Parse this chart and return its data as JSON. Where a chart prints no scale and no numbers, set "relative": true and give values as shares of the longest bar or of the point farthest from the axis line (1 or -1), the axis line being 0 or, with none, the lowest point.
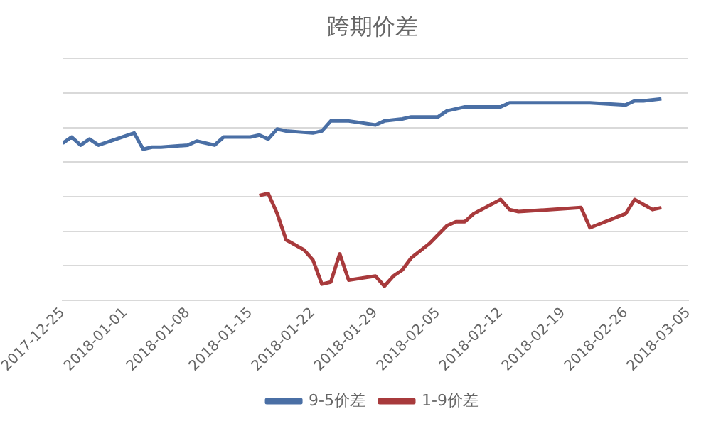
{
  "chart_data": {
    "type": "line",
    "title": "跨期价差",
    "relative": true,
    "grid": "y",
    "legend": "bottom",
    "marker": "none",
    "xlim": [
      "2017-12-25",
      "2018-03-05"
    ],
    "xticks": [
      "2017-12-25",
      "2018-01-01",
      "2018-01-08",
      "2018-01-15",
      "2018-01-22",
      "2018-01-29",
      "2018-02-05",
      "2018-02-12",
      "2018-02-19",
      "2018-02-26",
      "2018-03-05"
    ],
    "series": [
      {
        "name": "9-5价差",
        "color": "#4a6fa5",
        "x": [
          "2017-12-25",
          "2017-12-26",
          "2017-12-27",
          "2017-12-28",
          "2017-12-29",
          "2018-01-02",
          "2018-01-03",
          "2018-01-04",
          "2018-01-05",
          "2018-01-08",
          "2018-01-09",
          "2018-01-11",
          "2018-01-12",
          "2018-01-15",
          "2018-01-16",
          "2018-01-17",
          "2018-01-18",
          "2018-01-19",
          "2018-01-22",
          "2018-01-23",
          "2018-01-24",
          "2018-01-26",
          "2018-01-29",
          "2018-01-30",
          "2018-02-01",
          "2018-02-02",
          "2018-02-05",
          "2018-02-06",
          "2018-02-08",
          "2018-02-12",
          "2018-02-13",
          "2018-02-22",
          "2018-02-26",
          "2018-02-27",
          "2018-02-28",
          "2018-03-02"
        ],
        "values": [
          0.78,
          0.81,
          0.77,
          0.8,
          0.77,
          0.83,
          0.75,
          0.76,
          0.76,
          0.77,
          0.79,
          0.77,
          0.81,
          0.81,
          0.82,
          0.8,
          0.85,
          0.84,
          0.83,
          0.84,
          0.89,
          0.89,
          0.87,
          0.89,
          0.9,
          0.91,
          0.91,
          0.94,
          0.96,
          0.96,
          0.98,
          0.98,
          0.97,
          0.99,
          0.99,
          1
        ]
      },
      {
        "name": "1-9价差",
        "color": "#a83a3c",
        "x": [
          "2018-01-16",
          "2018-01-17",
          "2018-01-18",
          "2018-01-19",
          "2018-01-21",
          "2018-01-22",
          "2018-01-23",
          "2018-01-24",
          "2018-01-25",
          "2018-01-26",
          "2018-01-29",
          "2018-01-30",
          "2018-01-31",
          "2018-02-01",
          "2018-02-02",
          "2018-02-04",
          "2018-02-06",
          "2018-02-07",
          "2018-02-08",
          "2018-02-09",
          "2018-02-12",
          "2018-02-13",
          "2018-02-14",
          "2018-02-21",
          "2018-02-22",
          "2018-02-26",
          "2018-02-27",
          "2018-03-01",
          "2018-03-02"
        ],
        "values": [
          0.52,
          0.53,
          0.43,
          0.3,
          0.25,
          0.2,
          0.08,
          0.09,
          0.23,
          0.1,
          0.12,
          0.07,
          0.12,
          0.15,
          0.21,
          0.28,
          0.37,
          0.39,
          0.39,
          0.43,
          0.5,
          0.45,
          0.44,
          0.46,
          0.36,
          0.43,
          0.5,
          0.45,
          0.46
        ]
      }
    ]
  }
}
